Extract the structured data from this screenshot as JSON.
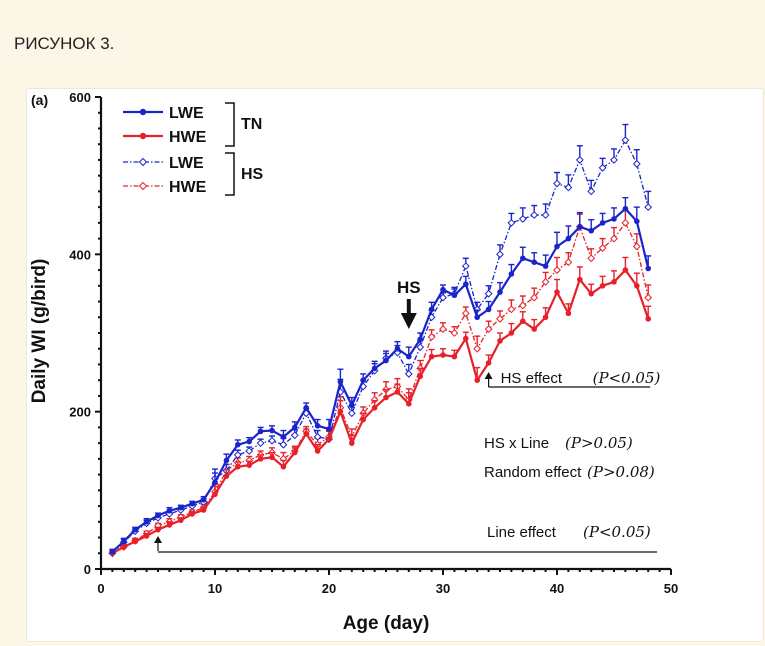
{
  "caption": "РИСУНОК 3.",
  "colors": {
    "lwe": "#1a24cc",
    "hwe": "#e8202a",
    "background": "#fbf6e6"
  },
  "chart_data": {
    "type": "line",
    "panel_label": "(a)",
    "xlabel": "Age (day)",
    "ylabel": "Daily WI (g/bird)",
    "xlim": [
      0,
      50
    ],
    "ylim": [
      0,
      600
    ],
    "xticks": [
      0,
      10,
      20,
      30,
      40,
      50
    ],
    "yticks": [
      0,
      200,
      400,
      600
    ],
    "grid": false,
    "legend": {
      "position": "top-left",
      "groups": [
        {
          "label": "TN",
          "entries": [
            "LWE",
            "HWE"
          ]
        },
        {
          "label": "HS",
          "entries": [
            "LWE",
            "HWE"
          ]
        }
      ]
    },
    "series": [
      {
        "name": "LWE",
        "group": "TN",
        "color": "#1a24cc",
        "style": "solid",
        "marker": "filled-circle",
        "x": [
          1,
          2,
          3,
          4,
          5,
          6,
          7,
          8,
          9,
          10,
          11,
          12,
          13,
          14,
          15,
          16,
          17,
          18,
          19,
          20,
          21,
          22,
          23,
          24,
          25,
          26,
          27,
          28,
          29,
          30,
          31,
          32,
          33,
          34,
          35,
          36,
          37,
          38,
          39,
          40,
          41,
          42,
          43,
          44,
          45,
          46,
          47,
          48
        ],
        "y": [
          22,
          35,
          50,
          60,
          68,
          74,
          78,
          83,
          88,
          110,
          138,
          158,
          162,
          175,
          176,
          168,
          180,
          205,
          182,
          178,
          238,
          208,
          240,
          255,
          265,
          280,
          270,
          292,
          330,
          355,
          348,
          362,
          320,
          330,
          352,
          375,
          395,
          390,
          385,
          410,
          420,
          435,
          430,
          440,
          445,
          458,
          442,
          382
        ],
        "err": [
          3,
          4,
          3,
          4,
          3,
          4,
          3,
          3,
          4,
          12,
          8,
          6,
          5,
          5,
          6,
          8,
          7,
          6,
          8,
          12,
          16,
          10,
          8,
          9,
          9,
          9,
          12,
          8,
          9,
          6,
          8,
          10,
          9,
          10,
          12,
          12,
          14,
          12,
          14,
          18,
          16,
          18,
          14,
          12,
          14,
          14,
          18,
          16
        ]
      },
      {
        "name": "HWE",
        "group": "TN",
        "color": "#e8202a",
        "style": "solid",
        "marker": "filled-circle",
        "x": [
          1,
          2,
          3,
          4,
          5,
          6,
          7,
          8,
          9,
          10,
          11,
          12,
          13,
          14,
          15,
          16,
          17,
          18,
          19,
          20,
          21,
          22,
          23,
          24,
          25,
          26,
          27,
          28,
          29,
          30,
          31,
          32,
          33,
          34,
          35,
          36,
          37,
          38,
          39,
          40,
          41,
          42,
          43,
          44,
          45,
          46,
          47,
          48
        ],
        "y": [
          20,
          28,
          35,
          42,
          50,
          56,
          62,
          70,
          75,
          95,
          118,
          130,
          132,
          140,
          142,
          130,
          148,
          172,
          150,
          165,
          200,
          160,
          190,
          205,
          218,
          225,
          210,
          245,
          270,
          272,
          270,
          293,
          240,
          262,
          290,
          300,
          315,
          305,
          320,
          352,
          325,
          368,
          350,
          360,
          365,
          380,
          360,
          318
        ],
        "err": [
          3,
          3,
          3,
          3,
          3,
          4,
          3,
          3,
          4,
          10,
          8,
          6,
          5,
          5,
          6,
          8,
          6,
          6,
          8,
          10,
          14,
          10,
          8,
          9,
          10,
          10,
          14,
          10,
          9,
          8,
          8,
          8,
          16,
          10,
          10,
          12,
          12,
          12,
          12,
          16,
          12,
          16,
          12,
          12,
          14,
          16,
          16,
          16
        ]
      },
      {
        "name": "LWE",
        "group": "HS",
        "color": "#1a24cc",
        "style": "dash-dot",
        "marker": "open-diamond",
        "x": [
          1,
          2,
          3,
          4,
          5,
          6,
          7,
          8,
          9,
          10,
          11,
          12,
          13,
          14,
          15,
          16,
          17,
          18,
          19,
          20,
          21,
          22,
          23,
          24,
          25,
          26,
          27,
          28,
          29,
          30,
          31,
          32,
          33,
          34,
          35,
          36,
          37,
          38,
          39,
          40,
          41,
          42,
          43,
          44,
          45,
          46,
          47,
          48
        ],
        "y": [
          20,
          34,
          48,
          58,
          65,
          70,
          75,
          80,
          85,
          115,
          125,
          145,
          150,
          160,
          163,
          158,
          170,
          198,
          168,
          165,
          225,
          198,
          232,
          252,
          268,
          275,
          248,
          282,
          320,
          345,
          350,
          385,
          330,
          350,
          400,
          440,
          445,
          450,
          450,
          490,
          485,
          520,
          480,
          510,
          520,
          545,
          515,
          460
        ],
        "err": [
          3,
          4,
          3,
          4,
          3,
          4,
          3,
          3,
          4,
          12,
          8,
          6,
          5,
          5,
          6,
          8,
          7,
          6,
          8,
          12,
          16,
          10,
          8,
          9,
          9,
          9,
          12,
          8,
          9,
          6,
          8,
          10,
          9,
          10,
          12,
          12,
          14,
          12,
          14,
          14,
          16,
          18,
          14,
          12,
          14,
          20,
          18,
          20
        ]
      },
      {
        "name": "HWE",
        "group": "HS",
        "color": "#e8202a",
        "style": "dash-dot",
        "marker": "open-diamond",
        "x": [
          1,
          2,
          3,
          4,
          5,
          6,
          7,
          8,
          9,
          10,
          11,
          12,
          13,
          14,
          15,
          16,
          17,
          18,
          19,
          20,
          21,
          22,
          23,
          24,
          25,
          26,
          27,
          28,
          29,
          30,
          31,
          32,
          33,
          34,
          35,
          36,
          37,
          38,
          39,
          40,
          41,
          42,
          43,
          44,
          45,
          46,
          47,
          48
        ],
        "y": [
          20,
          28,
          36,
          45,
          55,
          60,
          66,
          72,
          78,
          98,
          125,
          135,
          138,
          145,
          148,
          140,
          150,
          175,
          158,
          168,
          205,
          168,
          198,
          215,
          228,
          232,
          215,
          255,
          295,
          305,
          300,
          325,
          280,
          305,
          318,
          330,
          335,
          345,
          365,
          380,
          390,
          435,
          395,
          408,
          420,
          440,
          410,
          345
        ],
        "err": [
          3,
          3,
          3,
          3,
          3,
          4,
          3,
          3,
          4,
          10,
          8,
          6,
          5,
          5,
          6,
          8,
          6,
          6,
          8,
          10,
          14,
          10,
          8,
          9,
          10,
          10,
          14,
          10,
          9,
          8,
          8,
          8,
          16,
          10,
          10,
          12,
          12,
          12,
          12,
          16,
          12,
          16,
          12,
          12,
          14,
          16,
          16,
          16
        ]
      }
    ],
    "annotations": {
      "hs_arrow_label": "HS",
      "hs_arrow_x": 27,
      "hs_effect": {
        "label": "HS effect",
        "p": "(P<0.05)",
        "start_x": 34,
        "end_x": 48
      },
      "hs_line": {
        "label": "HS x Line",
        "p": "(P>0.05)"
      },
      "random": {
        "label": "Random effect",
        "p": "(P>0.08)"
      },
      "line_effect": {
        "label": "Line effect",
        "p": "(P<0.05)",
        "start_x": 5,
        "end_x": 50
      }
    }
  }
}
